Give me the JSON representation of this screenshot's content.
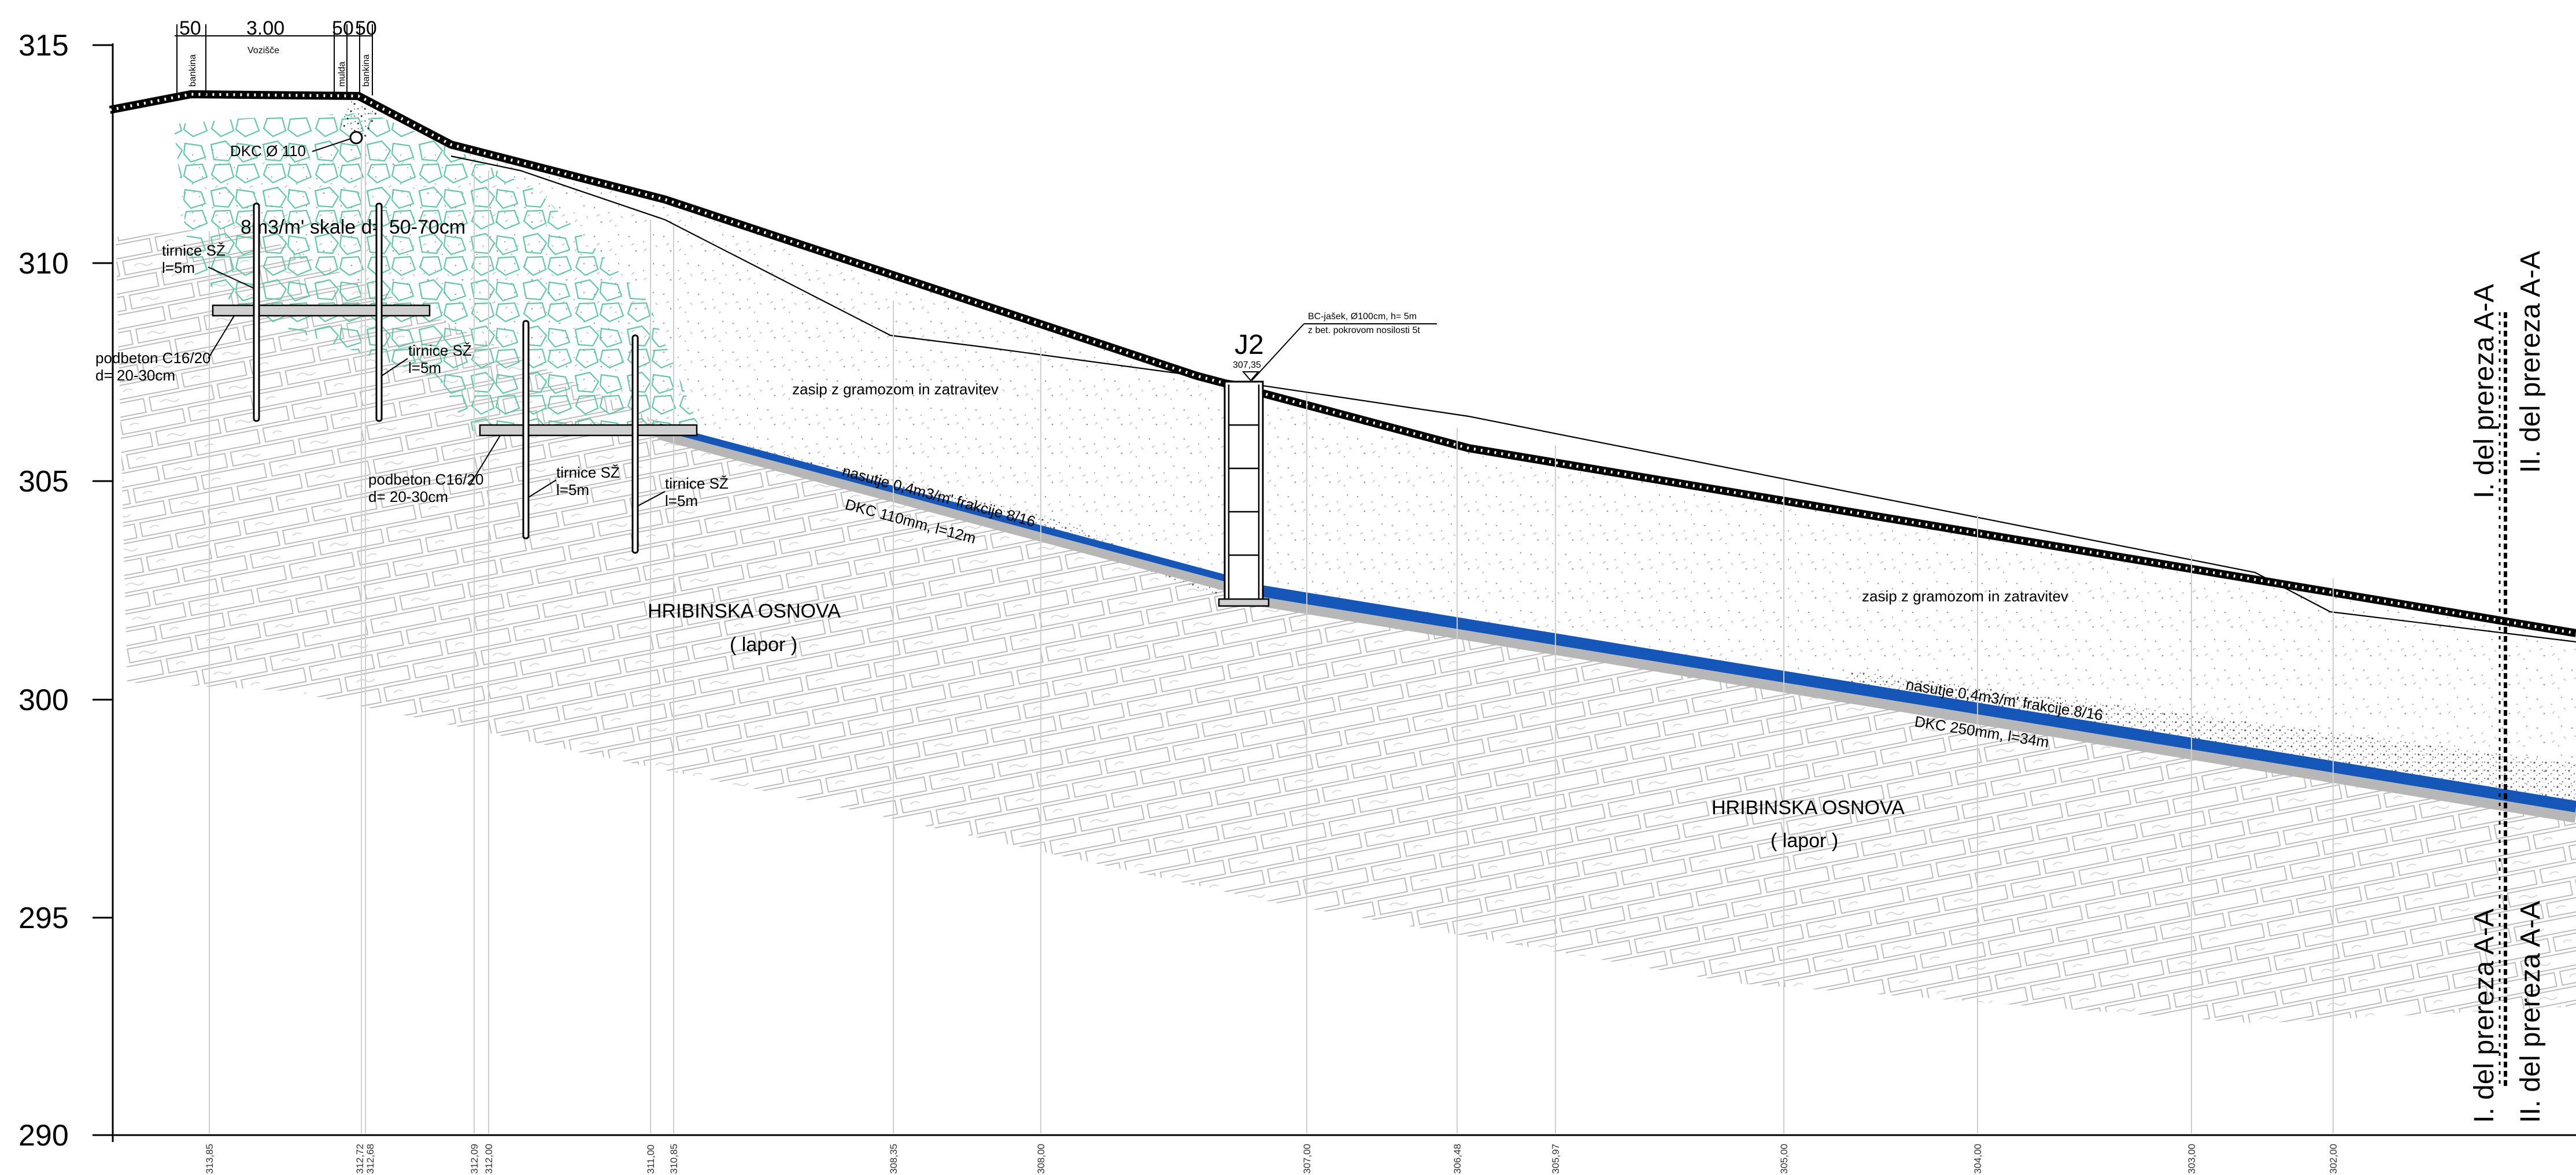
{
  "y_axis": {
    "labels": [
      "315",
      "310",
      "305",
      "300",
      "295",
      "290"
    ]
  },
  "stations": [
    "313,85",
    "312,72",
    "312,68",
    "312,09",
    "312,00",
    "311,00",
    "310,85",
    "308,35",
    "308,00",
    "307,00",
    "306,48",
    "305,97",
    "305,00",
    "304,00",
    "303,00",
    "302,00"
  ],
  "road": {
    "dims": [
      "50",
      "3.00",
      "50",
      "50"
    ],
    "bankina_left": "bankina",
    "vozisce": "Vozišče",
    "mulda": "mulda",
    "bankina_right": "bankina"
  },
  "labels": {
    "dkc_small": "DKC Ø 110",
    "stone": "8m3/m' skale d= 50-70cm",
    "tirnice1_a": "tirnice SŽ",
    "tirnice1_b": "l=5m",
    "tirnice2_a": "tirnice SŽ",
    "tirnice2_b": "l=5m",
    "tirnice3_a": "tirnice SŽ",
    "tirnice3_b": "l=5m",
    "tirnice4_a": "tirnice SŽ",
    "tirnice4_b": "l=5m",
    "podbeton1_a": "podbeton C16/20",
    "podbeton1_b": "d= 20-30cm",
    "podbeton2_a": "podbeton C16/20",
    "podbeton2_b": "d= 20-30cm",
    "zasip1": "zasip z  gramozom in zatravitev",
    "zasip2": "zasip z  gramozom in zatravitev",
    "nasutje1": "nasutje 0,4m3/m' frakcije 8/16",
    "dkc1": "DKC  110mm, l=12m",
    "nasutje2": "nasutje 0,4m3/m' frakcije 8/16",
    "dkc2": "DKC  250mm, l=34m",
    "hrib1": "HRIBINSKA OSNOVA",
    "lapor1": "( lapor )",
    "hrib2": "HRIBINSKA OSNOVA",
    "lapor2": "( lapor )",
    "j2": "J2",
    "j2_elev": "307,35",
    "bc1": "BC-jašek, Ø100cm, h= 5m",
    "bc2": "z bet. pokrovom nosilosti 5t",
    "sec_top_1": "I. del prereza A-A",
    "sec_top_2": "II. del prereza A-A",
    "sec_bot_1": "I. del prereza A-A",
    "sec_bot_2": "II. del prereza A-A"
  },
  "colors": {
    "drain": "#1457b8",
    "stone": "#5fc9a6",
    "rock": "#b5b5b5",
    "ground": "#000000"
  }
}
